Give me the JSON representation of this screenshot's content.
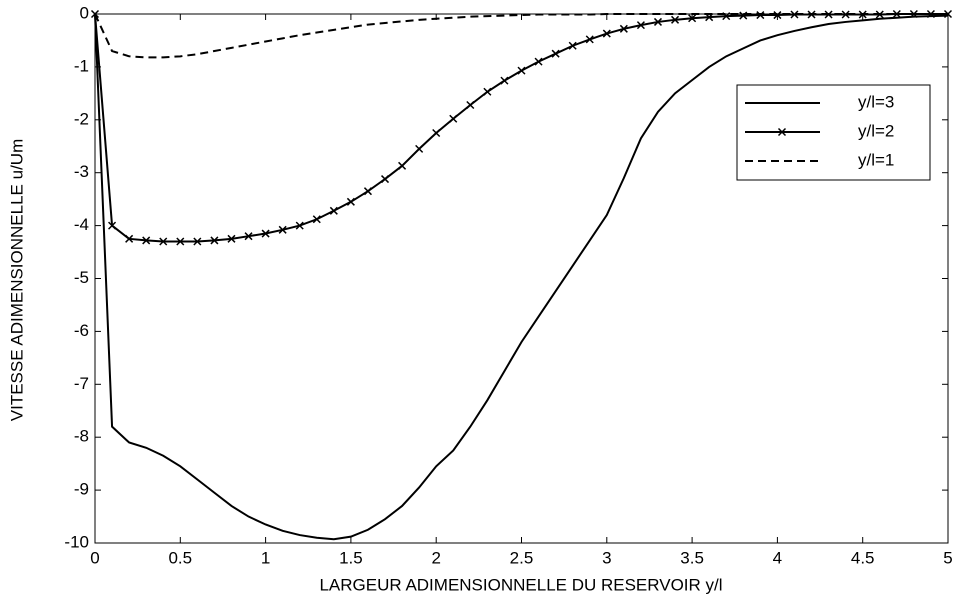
{
  "chart_data": {
    "type": "line",
    "xlabel": "LARGEUR ADIMENSIONNELLE DU RESERVOIR y/l",
    "ylabel": "VITESSE ADIMENSIONNELLE u/Um",
    "x": [
      0,
      0.1,
      0.2,
      0.3,
      0.4,
      0.5,
      0.6,
      0.7,
      0.8,
      0.9,
      1,
      1.1,
      1.2,
      1.3,
      1.4,
      1.5,
      1.6,
      1.7,
      1.8,
      1.9,
      2,
      2.1,
      2.2,
      2.3,
      2.4,
      2.5,
      2.6,
      2.7,
      2.8,
      2.9,
      3,
      3.1,
      3.2,
      3.3,
      3.4,
      3.5,
      3.6,
      3.7,
      3.8,
      3.9,
      4,
      4.1,
      4.2,
      4.3,
      4.4,
      4.5,
      4.6,
      4.7,
      4.8,
      4.9,
      5
    ],
    "series": [
      {
        "name": "y/l=3",
        "color": "#000000",
        "style": "solid",
        "marker": "none",
        "values": [
          0,
          -7.8,
          -8.1,
          -8.2,
          -8.35,
          -8.55,
          -8.8,
          -9.05,
          -9.3,
          -9.5,
          -9.65,
          -9.77,
          -9.85,
          -9.9,
          -9.93,
          -9.88,
          -9.75,
          -9.55,
          -9.3,
          -8.95,
          -8.55,
          -8.25,
          -7.8,
          -7.3,
          -6.75,
          -6.2,
          -5.72,
          -5.24,
          -4.76,
          -4.28,
          -3.8,
          -3.1,
          -2.35,
          -1.85,
          -1.5,
          -1.25,
          -1.0,
          -0.8,
          -0.65,
          -0.5,
          -0.4,
          -0.32,
          -0.25,
          -0.19,
          -0.15,
          -0.12,
          -0.09,
          -0.07,
          -0.05,
          -0.04,
          -0.03
        ]
      },
      {
        "name": "y/l=2",
        "color": "#000000",
        "style": "solid",
        "marker": "x",
        "values": [
          0,
          -4.0,
          -4.25,
          -4.28,
          -4.3,
          -4.3,
          -4.3,
          -4.28,
          -4.25,
          -4.2,
          -4.15,
          -4.08,
          -4.0,
          -3.88,
          -3.72,
          -3.55,
          -3.35,
          -3.12,
          -2.87,
          -2.55,
          -2.25,
          -1.98,
          -1.72,
          -1.47,
          -1.26,
          -1.07,
          -0.9,
          -0.75,
          -0.6,
          -0.48,
          -0.37,
          -0.28,
          -0.21,
          -0.15,
          -0.11,
          -0.08,
          -0.06,
          -0.04,
          -0.03,
          -0.02,
          -0.02,
          -0.01,
          -0.01,
          -0.01,
          -0.01,
          -0.01,
          -0.01,
          0,
          0,
          0,
          0
        ]
      },
      {
        "name": "y/l=1",
        "color": "#000000",
        "style": "dashed",
        "marker": "none",
        "values": [
          0,
          -0.7,
          -0.8,
          -0.82,
          -0.82,
          -0.8,
          -0.76,
          -0.7,
          -0.64,
          -0.58,
          -0.52,
          -0.46,
          -0.4,
          -0.35,
          -0.3,
          -0.25,
          -0.2,
          -0.17,
          -0.14,
          -0.11,
          -0.09,
          -0.07,
          -0.05,
          -0.04,
          -0.03,
          -0.02,
          -0.01,
          -0.01,
          -0.01,
          -0.01,
          0,
          0,
          0,
          0,
          0,
          0,
          0,
          0,
          0,
          0,
          0,
          0,
          0,
          0,
          0,
          0,
          0,
          0,
          0,
          0,
          0
        ]
      }
    ],
    "xlim": [
      0,
      5
    ],
    "xticks": [
      0,
      0.5,
      1,
      1.5,
      2,
      2.5,
      3,
      3.5,
      4,
      4.5,
      5
    ],
    "ylim": [
      -10,
      0
    ],
    "yticks": [
      -10,
      -9,
      -8,
      -7,
      -6,
      -5,
      -4,
      -3,
      -2,
      -1,
      0
    ],
    "grid": false,
    "legend": "upper right"
  }
}
